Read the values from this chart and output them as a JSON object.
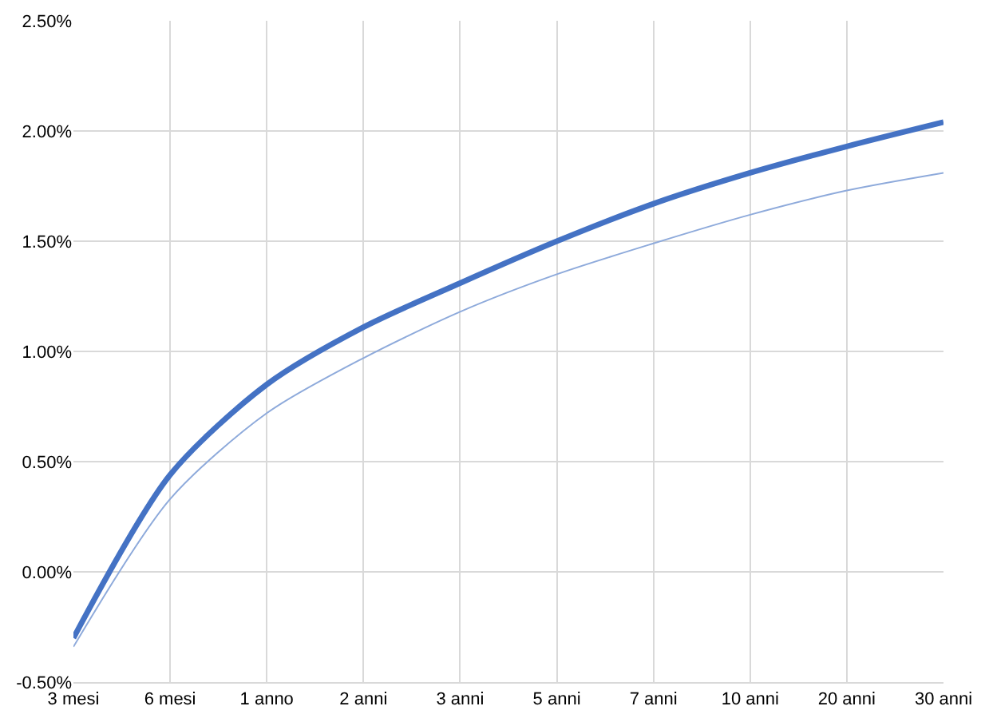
{
  "chart_data": {
    "type": "line",
    "categories": [
      "3 mesi",
      "6 mesi",
      "1 anno",
      "2 anni",
      "3 anni",
      "5 anni",
      "7 anni",
      "10 anni",
      "20 anni",
      "30 anni"
    ],
    "series": [
      {
        "color": "#4472c4",
        "values": [
          -0.3,
          0.44,
          0.85,
          1.11,
          1.31,
          1.5,
          1.67,
          1.81,
          1.93,
          2.04
        ]
      },
      {
        "color": "#8eaadb",
        "values": [
          -0.34,
          0.33,
          0.72,
          0.97,
          1.18,
          1.35,
          1.49,
          1.62,
          1.73,
          1.81
        ]
      }
    ],
    "ylim": [
      -0.5,
      2.5
    ],
    "yticks": [
      {
        "value": -0.5,
        "label": "-0.50%"
      },
      {
        "value": 0,
        "label": "0.00%"
      },
      {
        "value": 0.5,
        "label": "0.50%"
      },
      {
        "value": 1,
        "label": "1.00%"
      },
      {
        "value": 1.5,
        "label": "1.50%"
      },
      {
        "value": 2,
        "label": "2.00%"
      },
      {
        "value": 2.5,
        "label": "2.50%"
      }
    ],
    "grid": true,
    "legend": false,
    "marker": "none",
    "line_style": "solid"
  }
}
